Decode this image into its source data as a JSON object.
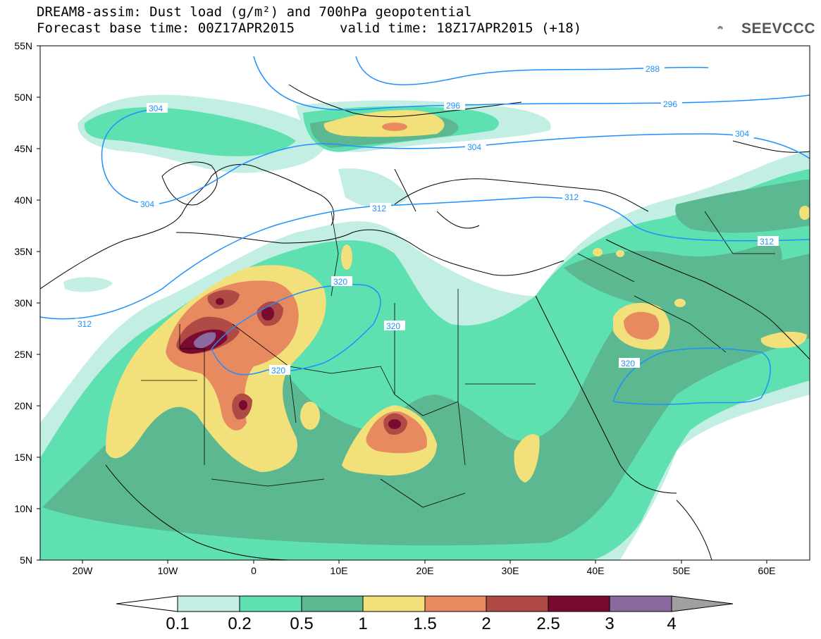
{
  "title": {
    "line1": "DREAM8-assim: Dust load (g/m²) and 700hPa geopotential",
    "base_time": "Forecast base time: 00Z17APR2015",
    "valid_time": "valid time: 18Z17APR2015 (+18)"
  },
  "logo": {
    "text": "SEEVCCC",
    "icon": "cloud-logo-icon"
  },
  "axes": {
    "lat_labels": [
      "55N",
      "50N",
      "45N",
      "40N",
      "35N",
      "30N",
      "25N",
      "20N",
      "15N",
      "10N",
      "5N"
    ],
    "lon_labels": [
      "20W",
      "10W",
      "0",
      "10E",
      "20E",
      "30E",
      "40E",
      "50E",
      "60E"
    ]
  },
  "colorbar": {
    "labels": [
      "0.1",
      "0.2",
      "0.5",
      "1",
      "1.5",
      "2",
      "2.5",
      "3",
      "4"
    ],
    "colors": [
      "#c2eee3",
      "#5ee0b0",
      "#5cb890",
      "#f2e07a",
      "#e88a60",
      "#b04a45",
      "#7a0a30",
      "#8b6aa0",
      "#a0a0a0"
    ]
  },
  "contour_labels": [
    "288",
    "296",
    "296",
    "304",
    "304",
    "304",
    "304",
    "312",
    "312",
    "312",
    "312",
    "320",
    "320",
    "320",
    "320"
  ],
  "colors": {
    "contour": "#1e90ff",
    "border": "#000000"
  }
}
